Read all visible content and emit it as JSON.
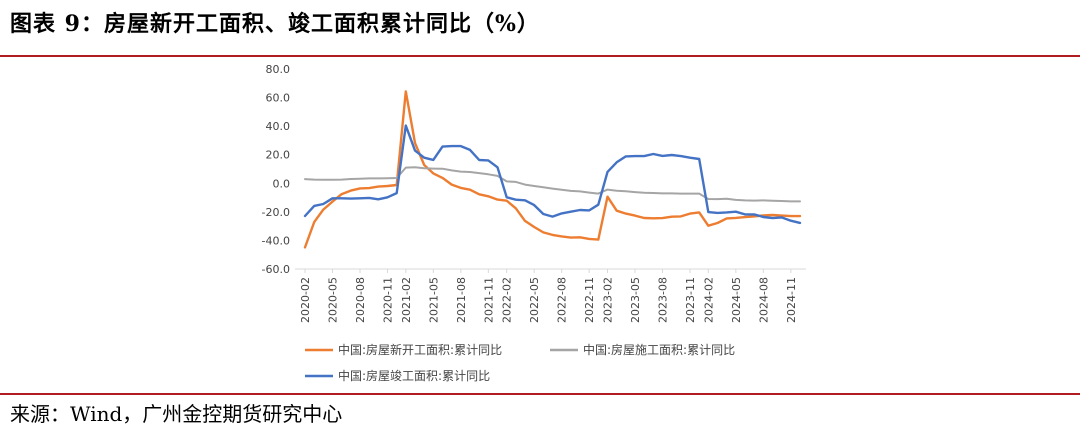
{
  "header": {
    "title": "图表 9：房屋新开工面积、竣工面积累计同比（%）"
  },
  "footer": {
    "source": "来源：Wind，广州金控期货研究中心"
  },
  "colors": {
    "rule": "#b01c22",
    "axis": "#d9d9d9"
  },
  "chart_data": {
    "type": "line",
    "title": "",
    "xlabel": "",
    "ylabel": "",
    "ylim": [
      -60,
      80
    ],
    "ytick_step": 20,
    "yticks": [
      "80.0",
      "60.0",
      "40.0",
      "20.0",
      "0.0",
      "-20.0",
      "-40.0",
      "-60.0"
    ],
    "grid": false,
    "legend_position": "bottom",
    "categories": [
      "2020-02",
      "2020-03",
      "2020-04",
      "2020-05",
      "2020-06",
      "2020-07",
      "2020-08",
      "2020-09",
      "2020-10",
      "2020-11",
      "2020-12",
      "2021-02",
      "2021-03",
      "2021-04",
      "2021-05",
      "2021-06",
      "2021-07",
      "2021-08",
      "2021-09",
      "2021-10",
      "2021-11",
      "2021-12",
      "2022-02",
      "2022-03",
      "2022-04",
      "2022-05",
      "2022-06",
      "2022-07",
      "2022-08",
      "2022-09",
      "2022-10",
      "2022-11",
      "2022-12",
      "2023-02",
      "2023-03",
      "2023-04",
      "2023-05",
      "2023-06",
      "2023-07",
      "2023-08",
      "2023-09",
      "2023-10",
      "2023-11",
      "2023-12",
      "2024-02",
      "2024-03",
      "2024-04",
      "2024-05",
      "2024-06",
      "2024-07",
      "2024-08",
      "2024-09",
      "2024-10",
      "2024-11",
      "2024-12"
    ],
    "x_tick_labels": [
      "2020-02",
      "2020-05",
      "2020-08",
      "2020-11",
      "2021-02",
      "2021-05",
      "2021-08",
      "2021-11",
      "2022-02",
      "2022-05",
      "2022-08",
      "2022-11",
      "2023-02",
      "2023-05",
      "2023-08",
      "2023-11",
      "2024-02",
      "2024-05",
      "2024-08",
      "2024-11"
    ],
    "series": [
      {
        "name": "中国:房屋新开工面积:累计同比",
        "color": "#ed7d31",
        "values": [
          -44.9,
          -27.2,
          -18.4,
          -12.8,
          -7.6,
          -5.1,
          -3.6,
          -3.4,
          -2.3,
          -1.9,
          -1.2,
          64.3,
          28.2,
          12.8,
          6.9,
          3.8,
          -0.9,
          -3.2,
          -4.5,
          -7.7,
          -9.1,
          -11.4,
          -12.2,
          -17.5,
          -26.3,
          -30.6,
          -34.4,
          -36.1,
          -37.2,
          -38.0,
          -37.8,
          -38.9,
          -39.4,
          -9.4,
          -19.2,
          -21.2,
          -22.6,
          -24.3,
          -24.5,
          -24.4,
          -23.4,
          -23.2,
          -21.2,
          -20.4,
          -29.7,
          -27.8,
          -24.6,
          -24.2,
          -23.7,
          -23.2,
          -22.5,
          -22.2,
          -22.6,
          -23.0,
          -23.0
        ]
      },
      {
        "name": "中国:房屋施工面积:累计同比",
        "color": "#a5a5a5",
        "values": [
          2.9,
          2.6,
          2.5,
          2.5,
          2.6,
          3.0,
          3.2,
          3.4,
          3.4,
          3.5,
          3.7,
          11.0,
          11.2,
          10.5,
          10.3,
          10.2,
          9.0,
          8.2,
          7.9,
          7.1,
          6.3,
          5.2,
          1.3,
          1.0,
          -0.9,
          -1.9,
          -2.8,
          -3.7,
          -4.5,
          -5.3,
          -5.7,
          -6.5,
          -7.2,
          -4.4,
          -5.2,
          -5.6,
          -6.2,
          -6.6,
          -6.8,
          -7.1,
          -7.1,
          -7.2,
          -7.2,
          -7.2,
          -11.0,
          -11.1,
          -10.8,
          -11.6,
          -12.0,
          -12.1,
          -12.0,
          -12.2,
          -12.4,
          -12.7,
          -12.7
        ]
      },
      {
        "name": "中国:房屋竣工面积:累计同比",
        "color": "#4472c4",
        "values": [
          -22.9,
          -15.8,
          -14.5,
          -10.5,
          -10.5,
          -10.7,
          -10.5,
          -10.2,
          -11.2,
          -9.8,
          -6.9,
          40.4,
          22.9,
          17.9,
          16.4,
          25.7,
          26.0,
          26.0,
          23.4,
          16.3,
          16.0,
          11.2,
          -9.8,
          -11.5,
          -11.9,
          -15.3,
          -21.5,
          -23.3,
          -21.1,
          -19.9,
          -18.7,
          -19.0,
          -15.0,
          8.0,
          14.7,
          18.8,
          19.0,
          19.0,
          20.5,
          19.2,
          19.8,
          19.0,
          17.9,
          17.0,
          -20.2,
          -20.7,
          -20.4,
          -19.9,
          -21.8,
          -21.8,
          -23.6,
          -24.4,
          -23.9,
          -26.2,
          -27.7
        ]
      }
    ]
  }
}
